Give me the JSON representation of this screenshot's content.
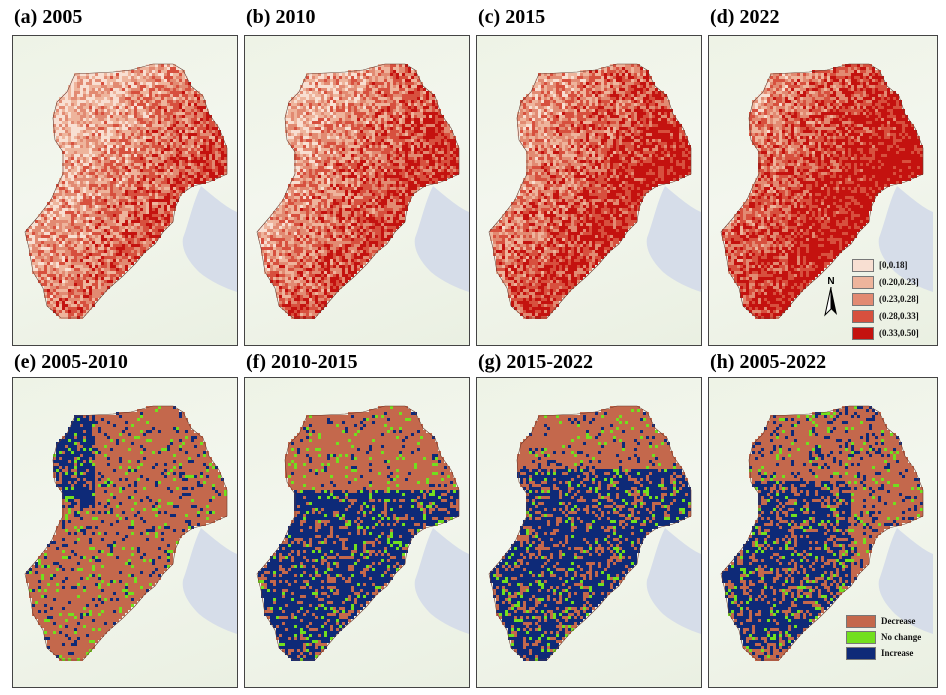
{
  "panels": [
    {
      "label": "(a) 2005",
      "type": "value",
      "seed": 11
    },
    {
      "label": "(b) 2010",
      "type": "value",
      "seed": 23
    },
    {
      "label": "(c) 2015",
      "type": "value",
      "seed": 37
    },
    {
      "label": "(d) 2022",
      "type": "value",
      "seed": 51
    },
    {
      "label": "(e) 2005-2010",
      "type": "change",
      "seed": 61
    },
    {
      "label": "(f) 2010-2015",
      "type": "change",
      "seed": 73
    },
    {
      "label": "(g) 2015-2022",
      "type": "change",
      "seed": 89
    },
    {
      "label": "(h) 2005-2022",
      "type": "change",
      "seed": 97
    }
  ],
  "value_legend": [
    {
      "label": "[0,0.18]",
      "color": "#f8dfd2"
    },
    {
      "label": "(0.20,0.23]",
      "color": "#eeb49c"
    },
    {
      "label": "(0.23,0.28]",
      "color": "#e28a72"
    },
    {
      "label": "(0.28,0.33]",
      "color": "#d7503e"
    },
    {
      "label": "(0.33,0.50]",
      "color": "#c4120f"
    }
  ],
  "change_legend": [
    {
      "label": "Decrease",
      "color": "#c4684c"
    },
    {
      "label": "No change",
      "color": "#72e01e"
    },
    {
      "label": "Increase",
      "color": "#0e2a78"
    }
  ],
  "north_arrow": {
    "label": "N"
  },
  "colors": {
    "sea": "#d6dde9",
    "background_land": "#eef3e6"
  }
}
